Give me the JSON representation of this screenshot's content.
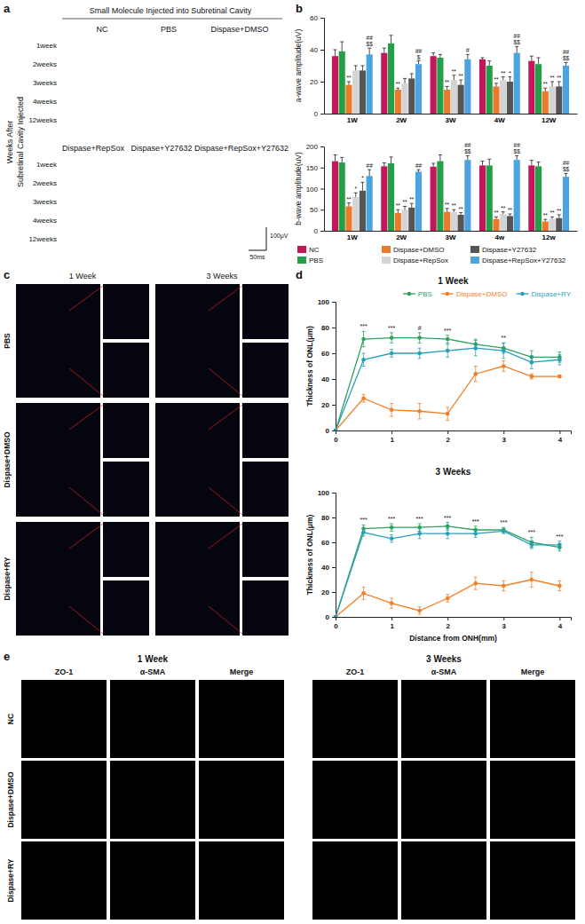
{
  "chart_data": [
    {
      "type": "bar",
      "ylabel": "a-wave amplitude(uV)",
      "categories": [
        "1W",
        "2W",
        "3W",
        "4W",
        "12W"
      ],
      "ylim": [
        0,
        60
      ],
      "yticks": [
        0,
        20,
        40,
        60
      ],
      "series": [
        {
          "color": "#c2185b",
          "values": [
            36,
            38,
            36,
            34,
            33
          ],
          "errors": [
            4,
            3,
            2,
            1,
            3
          ]
        },
        {
          "color": "#23a047",
          "values": [
            39,
            44,
            35,
            30,
            31
          ],
          "errors": [
            6,
            5,
            2,
            3,
            4
          ]
        },
        {
          "color": "#ec7a2c",
          "values": [
            18,
            15,
            15,
            17,
            14
          ],
          "errors": [
            2,
            1,
            2,
            2,
            2
          ]
        },
        {
          "color": "#d4d4d4",
          "values": [
            27,
            19,
            21,
            21,
            17
          ],
          "errors": [
            3,
            3,
            3,
            2,
            3
          ]
        },
        {
          "color": "#555555",
          "values": [
            27,
            22,
            18,
            20,
            17
          ],
          "errors": [
            3,
            3,
            3,
            3,
            3
          ]
        },
        {
          "color": "#4ba3e0",
          "values": [
            37,
            31,
            34,
            38,
            30
          ],
          "errors": [
            4,
            2,
            3,
            4,
            2
          ]
        }
      ],
      "annotations": [
        {
          "category": 0,
          "series": 2,
          "text": "**"
        },
        {
          "category": 1,
          "series": 2,
          "text": "**"
        },
        {
          "category": 2,
          "series": 2,
          "text": "**"
        },
        {
          "category": 3,
          "series": 2,
          "text": "**"
        },
        {
          "category": 4,
          "series": 2,
          "text": "**"
        },
        {
          "category": 2,
          "series": 3,
          "text": "**"
        },
        {
          "category": 3,
          "series": 3,
          "text": "**"
        },
        {
          "category": 4,
          "series": 3,
          "text": "**"
        },
        {
          "category": 2,
          "series": 4,
          "text": "**"
        },
        {
          "category": 3,
          "series": 4,
          "text": "*"
        },
        {
          "category": 4,
          "series": 4,
          "text": "**"
        },
        {
          "category": 0,
          "series": 5,
          "text": "$$"
        },
        {
          "category": 0,
          "series": 5,
          "text": "##"
        },
        {
          "category": 1,
          "series": 5,
          "text": "$"
        },
        {
          "category": 1,
          "series": 5,
          "text": "##"
        },
        {
          "category": 2,
          "series": 5,
          "text": "#"
        },
        {
          "category": 3,
          "series": 5,
          "text": "$$"
        },
        {
          "category": 3,
          "series": 5,
          "text": "##"
        },
        {
          "category": 4,
          "series": 5,
          "text": "$$"
        },
        {
          "category": 4,
          "series": 5,
          "text": "##"
        }
      ]
    },
    {
      "type": "bar",
      "ylabel": "b-wave amplitude(uV)",
      "categories": [
        "1W",
        "2W",
        "3W",
        "4w",
        "12w"
      ],
      "ylim": [
        0,
        200
      ],
      "yticks": [
        0,
        50,
        100,
        150,
        200
      ],
      "legend": "bottom",
      "series": [
        {
          "name": "NC",
          "color": "#c2185b",
          "values": [
            165,
            153,
            152,
            155,
            155
          ],
          "errors": [
            15,
            8,
            8,
            10,
            12
          ]
        },
        {
          "name": "PBS",
          "color": "#23a047",
          "values": [
            162,
            160,
            165,
            155,
            153
          ],
          "errors": [
            12,
            15,
            15,
            15,
            10
          ]
        },
        {
          "name": "Dispase+DMSO",
          "color": "#ec7a2c",
          "values": [
            58,
            42,
            45,
            28,
            22
          ],
          "errors": [
            8,
            8,
            8,
            5,
            5
          ]
        },
        {
          "name": "Dispase+RepSox",
          "color": "#d4d4d4",
          "values": [
            80,
            50,
            45,
            40,
            28
          ],
          "errors": [
            10,
            8,
            5,
            5,
            5
          ]
        },
        {
          "name": "Dispase+Y27632",
          "color": "#555555",
          "values": [
            95,
            55,
            38,
            35,
            30
          ],
          "errors": [
            20,
            10,
            5,
            5,
            8
          ]
        },
        {
          "name": "Dispase+RepSox+Y27632",
          "color": "#4ba3e0",
          "values": [
            130,
            140,
            168,
            168,
            128
          ],
          "errors": [
            15,
            5,
            10,
            10,
            8
          ]
        }
      ],
      "annotations": [
        {
          "category": 0,
          "series": 2,
          "text": "**"
        },
        {
          "category": 1,
          "series": 2,
          "text": "**"
        },
        {
          "category": 2,
          "series": 2,
          "text": "**"
        },
        {
          "category": 3,
          "series": 2,
          "text": "**"
        },
        {
          "category": 4,
          "series": 2,
          "text": "**"
        },
        {
          "category": 0,
          "series": 3,
          "text": "*"
        },
        {
          "category": 1,
          "series": 3,
          "text": "**"
        },
        {
          "category": 2,
          "series": 3,
          "text": "**"
        },
        {
          "category": 3,
          "series": 3,
          "text": "**"
        },
        {
          "category": 4,
          "series": 3,
          "text": "**"
        },
        {
          "category": 0,
          "series": 4,
          "text": "*"
        },
        {
          "category": 1,
          "series": 4,
          "text": "**"
        },
        {
          "category": 2,
          "series": 4,
          "text": "**"
        },
        {
          "category": 3,
          "series": 4,
          "text": "**"
        },
        {
          "category": 4,
          "series": 4,
          "text": "**"
        },
        {
          "category": 0,
          "series": 5,
          "text": "##"
        },
        {
          "category": 1,
          "series": 5,
          "text": "##"
        },
        {
          "category": 2,
          "series": 5,
          "text": "$$"
        },
        {
          "category": 2,
          "series": 5,
          "text": "##"
        },
        {
          "category": 3,
          "series": 5,
          "text": "$$"
        },
        {
          "category": 3,
          "series": 5,
          "text": "##"
        },
        {
          "category": 4,
          "series": 5,
          "text": "$$"
        },
        {
          "category": 4,
          "series": 5,
          "text": "##"
        }
      ]
    },
    {
      "type": "line",
      "title": "1 Week",
      "ylabel": "Thickness of ONL(μm)",
      "x": [
        0,
        0.5,
        1,
        1.5,
        2,
        2.5,
        3,
        3.5,
        4
      ],
      "xlim": [
        0,
        4.2
      ],
      "xticks": [
        0,
        1,
        2,
        3,
        4
      ],
      "ylim": [
        0,
        100
      ],
      "yticks": [
        0,
        20,
        40,
        60,
        80,
        100
      ],
      "legend": "top-right",
      "marker": "circle",
      "line_style": "solid",
      "series": [
        {
          "name": "PBS",
          "color": "#2ca25f",
          "values": [
            0,
            71,
            72,
            72,
            71,
            67,
            64,
            57,
            57
          ],
          "errors": [
            0,
            6,
            4,
            4,
            3,
            4,
            4,
            5,
            4
          ]
        },
        {
          "name": "Dispase+DMSO",
          "color": "#f07f28",
          "values": [
            0,
            25,
            16,
            15,
            13,
            44,
            50,
            42,
            42
          ],
          "errors": [
            0,
            3,
            5,
            6,
            5,
            6,
            4,
            2,
            1
          ]
        },
        {
          "name": "Dispase+RY",
          "color": "#2aa0b8",
          "values": [
            0,
            55,
            60,
            60,
            62,
            64,
            62,
            53,
            55
          ],
          "errors": [
            0,
            5,
            3,
            4,
            5,
            6,
            6,
            5,
            4
          ]
        }
      ],
      "annotations": [
        {
          "x": 0.5,
          "text": "***"
        },
        {
          "x": 1,
          "text": "***"
        },
        {
          "x": 1.5,
          "text": "#"
        },
        {
          "x": 2,
          "text": "***"
        },
        {
          "x": 3,
          "text": "**"
        }
      ]
    },
    {
      "type": "line",
      "title": "3 Weeks",
      "ylabel": "Thickness of ONL(μm)",
      "xlabel": "Distance from ONH(mm)",
      "x": [
        0,
        0.5,
        1,
        1.5,
        2,
        2.5,
        3,
        3.5,
        4
      ],
      "xlim": [
        0,
        4.2
      ],
      "xticks": [
        0,
        1,
        2,
        3,
        4
      ],
      "ylim": [
        0,
        100
      ],
      "yticks": [
        0,
        20,
        40,
        60,
        80,
        100
      ],
      "marker": "circle",
      "line_style": "solid",
      "series": [
        {
          "color": "#2ca25f",
          "values": [
            0,
            71,
            72,
            72,
            73,
            70,
            70,
            60,
            56
          ],
          "errors": [
            0,
            3,
            3,
            3,
            3,
            3,
            2,
            4,
            3
          ]
        },
        {
          "color": "#f07f28",
          "values": [
            0,
            19,
            11,
            5,
            15,
            27,
            25,
            30,
            25
          ],
          "errors": [
            0,
            5,
            4,
            3,
            3,
            5,
            4,
            6,
            4
          ]
        },
        {
          "color": "#2aa0b8",
          "values": [
            0,
            68,
            63,
            67,
            67,
            67,
            69,
            58,
            58
          ],
          "errors": [
            0,
            3,
            3,
            4,
            4,
            3,
            2,
            3,
            3
          ]
        }
      ],
      "annotations": [
        {
          "x": 0.5,
          "text": "***"
        },
        {
          "x": 1,
          "text": "***"
        },
        {
          "x": 1.5,
          "text": "***"
        },
        {
          "x": 2,
          "text": "***"
        },
        {
          "x": 2.5,
          "text": "***"
        },
        {
          "x": 3,
          "text": "***"
        },
        {
          "x": 3.5,
          "text": "***"
        },
        {
          "x": 4,
          "text": "***"
        }
      ]
    }
  ],
  "figure": {
    "panel_labels": [
      "a",
      "b",
      "c",
      "d",
      "e"
    ],
    "a": {
      "title": "Small Molecule Injected into Subretinal Cavity",
      "y_label": [
        "Weeks After",
        "Subretinal Cavity Injected"
      ],
      "groups": [
        [
          "NC",
          "PBS",
          "Dispase+DMSO"
        ],
        [
          "Dispase+RepSox",
          "Dispase+Y27632",
          "Dispase+RepSox+Y27632"
        ]
      ],
      "rows": [
        "1week",
        "2weeks",
        "3weeks",
        "4weeks",
        "12weeks"
      ],
      "scale_bar": [
        "100μV",
        "50ms"
      ]
    },
    "c": {
      "columns": [
        "1 Week",
        "3 Weeks"
      ],
      "rows": [
        "PBS",
        "Dispase+DMSO",
        "Dispase+RY"
      ]
    },
    "e": {
      "groups": [
        "1 Week",
        "3 Weeks"
      ],
      "columns": [
        "ZO-1",
        "α-SMA",
        "Merge"
      ],
      "rows": [
        "NC",
        "Dispase+DMSO",
        "Dispase+RY"
      ]
    }
  }
}
